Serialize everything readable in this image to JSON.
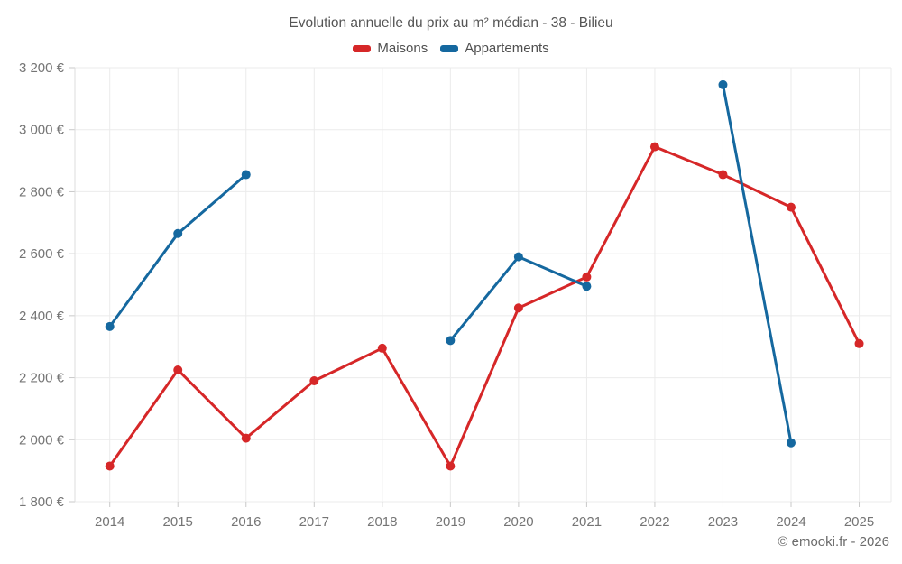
{
  "header": {
    "title": "Evolution annuelle du prix au m² médian - 38 - Bilieu"
  },
  "footer": {
    "credit": "© emooki.fr - 2026"
  },
  "colors": {
    "maisons": "#d62728",
    "appartements": "#15689f",
    "gridline": "#ebebeb",
    "axis_line": "#dcdcdc",
    "tick": "#c9c9c9",
    "tick_label": "#757575"
  },
  "chart_data": {
    "type": "line",
    "title": "Evolution annuelle du prix au m² médian - 38 - Bilieu",
    "categories": [
      "2014",
      "2015",
      "2016",
      "2017",
      "2018",
      "2019",
      "2020",
      "2021",
      "2022",
      "2023",
      "2024",
      "2025"
    ],
    "series": [
      {
        "name": "Maisons",
        "color": "#d62728",
        "values": [
          1915,
          2225,
          2005,
          2190,
          2295,
          1915,
          2425,
          2525,
          2945,
          2855,
          2750,
          2310
        ]
      },
      {
        "name": "Appartements",
        "color": "#15689f",
        "values": [
          2365,
          2665,
          2855,
          null,
          null,
          2320,
          2590,
          2495,
          null,
          3145,
          1990,
          null
        ]
      }
    ],
    "xlabel": "",
    "ylabel": "",
    "unit": "€",
    "ylim": [
      1800,
      3200
    ],
    "y_step": 200,
    "y_tick_labels": [
      "1 800 €",
      "2 000 €",
      "2 200 €",
      "2 400 €",
      "2 600 €",
      "2 800 €",
      "3 000 €",
      "3 200 €"
    ],
    "grid": true,
    "legend_position": "top",
    "marker": "circle"
  }
}
